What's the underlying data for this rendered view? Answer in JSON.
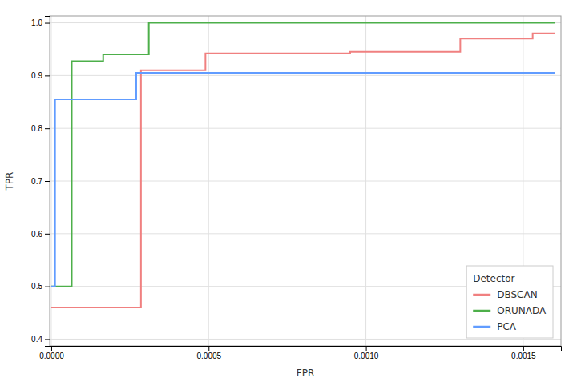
{
  "chart_data": {
    "type": "line",
    "xlabel": "FPR",
    "ylabel": "TPR",
    "xlim": [
      -5e-06,
      0.00162
    ],
    "ylim": [
      0.387,
      1.013
    ],
    "xticks": [
      {
        "value": 0.0,
        "label": "0.0000"
      },
      {
        "value": 0.0005,
        "label": "0.0005"
      },
      {
        "value": 0.001,
        "label": "0.0010"
      },
      {
        "value": 0.0015,
        "label": "0.0015"
      }
    ],
    "yticks": [
      0.4,
      0.5,
      0.6,
      0.7,
      0.8,
      0.9,
      {
        "value": 1.0,
        "label": "1.0"
      }
    ],
    "grid": true,
    "legend": "lower right",
    "legend_title": "Detector",
    "series": [
      {
        "name": "DBSCAN",
        "color": "#F08080",
        "x": [
          0.0,
          0.000285,
          0.000285,
          0.00049,
          0.00049,
          0.00095,
          0.00095,
          0.0013,
          0.0013,
          0.00153,
          0.00153,
          0.0016
        ],
        "values": [
          0.46,
          0.46,
          0.91,
          0.91,
          0.942,
          0.942,
          0.945,
          0.945,
          0.97,
          0.97,
          0.98,
          0.98
        ]
      },
      {
        "name": "ORUNADA",
        "color": "#4DAF4A",
        "x": [
          0.0,
          6.5e-05,
          6.5e-05,
          0.000165,
          0.000165,
          0.00031,
          0.00031,
          0.0016
        ],
        "values": [
          0.5,
          0.5,
          0.927,
          0.927,
          0.94,
          0.94,
          1.0,
          1.0
        ]
      },
      {
        "name": "PCA",
        "color": "#619CFF",
        "x": [
          0.0,
          1.2e-05,
          1.2e-05,
          0.00027,
          0.00027,
          0.0016
        ],
        "values": [
          0.5,
          0.5,
          0.855,
          0.855,
          0.905,
          0.905
        ]
      }
    ]
  }
}
